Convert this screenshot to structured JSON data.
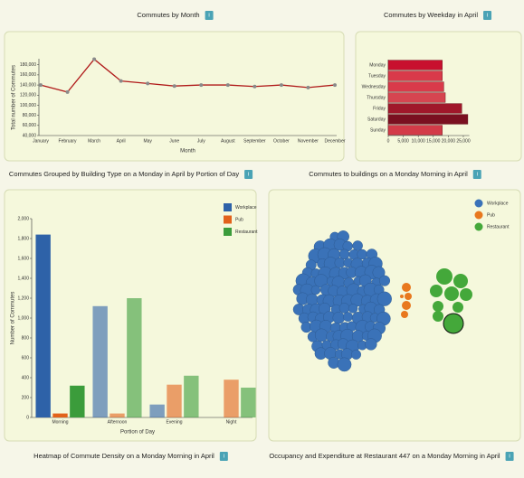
{
  "info_label": "i",
  "footer_titles": [
    "Heatmap of Commute Density on a Monday Morning in April",
    "Occupancy and Expenditure at Restaurant 447 on a Monday Morning in April"
  ],
  "chart_data": [
    {
      "type": "line",
      "title": "Commutes by Month",
      "xlabel": "Month",
      "ylabel": "Total number of Commutes",
      "color": "#b01a1a",
      "point_color": "#8a8a8a",
      "categories": [
        "January",
        "February",
        "March",
        "April",
        "May",
        "June",
        "July",
        "August",
        "September",
        "October",
        "November",
        "December"
      ],
      "values": [
        140000,
        126000,
        191000,
        148000,
        143000,
        138000,
        140000,
        140000,
        137000,
        140000,
        135000,
        140000
      ],
      "ylim": [
        40000,
        192000
      ],
      "yticks": [
        {
          "value": 40000,
          "label": "40,000"
        },
        {
          "value": 60000,
          "label": "60,000"
        },
        {
          "value": 80000,
          "label": "80,000"
        },
        {
          "value": 100000,
          "label": "100,000"
        },
        {
          "value": 120000,
          "label": "120,000"
        },
        {
          "value": 140000,
          "label": "140,000"
        },
        {
          "value": 160000,
          "label": "160,000"
        },
        {
          "value": 180000,
          "label": "180,000"
        }
      ]
    },
    {
      "type": "barh",
      "title": "Commutes by Weekday in April",
      "categories": [
        "Monday",
        "Tuesday",
        "Wednesday",
        "Thursday",
        "Friday",
        "Saturday",
        "Sunday"
      ],
      "values": [
        18000,
        18000,
        18500,
        19000,
        24500,
        26500,
        18000
      ],
      "colors": [
        "#c8102e",
        "#d93a4a",
        "#d93a4a",
        "#d64550",
        "#a0182a",
        "#7a1020",
        "#d33b48"
      ],
      "xlim": [
        0,
        27000
      ],
      "xticks": [
        0,
        {
          "value": 5000,
          "label": "5,000"
        },
        {
          "value": 10000,
          "label": "10,000"
        },
        {
          "value": 15000,
          "label": "15,000"
        },
        {
          "value": 20000,
          "label": "20,000"
        },
        {
          "value": 25000,
          "label": "25,000"
        }
      ]
    },
    {
      "type": "bar",
      "title": "Commutes Grouped by Building Type on a Monday in April by Portion of Day",
      "xlabel": "Portion of Day",
      "ylabel": "Number of Commutes",
      "categories": [
        "Morning",
        "Afternoon",
        "Evening",
        "Night"
      ],
      "category_opacity": [
        1,
        0.6,
        0.6,
        0.6
      ],
      "series": [
        {
          "name": "Workplace",
          "color": "#2e62a8",
          "values": [
            1840,
            1120,
            130,
            0
          ]
        },
        {
          "name": "Pub",
          "color": "#e2621b",
          "values": [
            40,
            40,
            330,
            380
          ]
        },
        {
          "name": "Restaurant",
          "color": "#3b9c3b",
          "values": [
            320,
            1200,
            420,
            300
          ]
        }
      ],
      "ylim": [
        0,
        2000
      ],
      "yticks": [
        0,
        200,
        400,
        600,
        800,
        {
          "value": 1000,
          "label": "1,000"
        },
        {
          "value": 1200,
          "label": "1,200"
        },
        {
          "value": 1400,
          "label": "1,400"
        },
        {
          "value": 1600,
          "label": "1,600"
        },
        {
          "value": 1800,
          "label": "1,800"
        },
        {
          "value": 2000,
          "label": "2,000"
        }
      ]
    },
    {
      "type": "bubble",
      "title": "Commutes to buildings on a Monday Morning in April",
      "series": [
        {
          "name": "Workplace",
          "color": "#3a72b8"
        },
        {
          "name": "Pub",
          "color": "#e8781e"
        },
        {
          "name": "Restaurant",
          "color": "#44a83a"
        }
      ]
    }
  ]
}
